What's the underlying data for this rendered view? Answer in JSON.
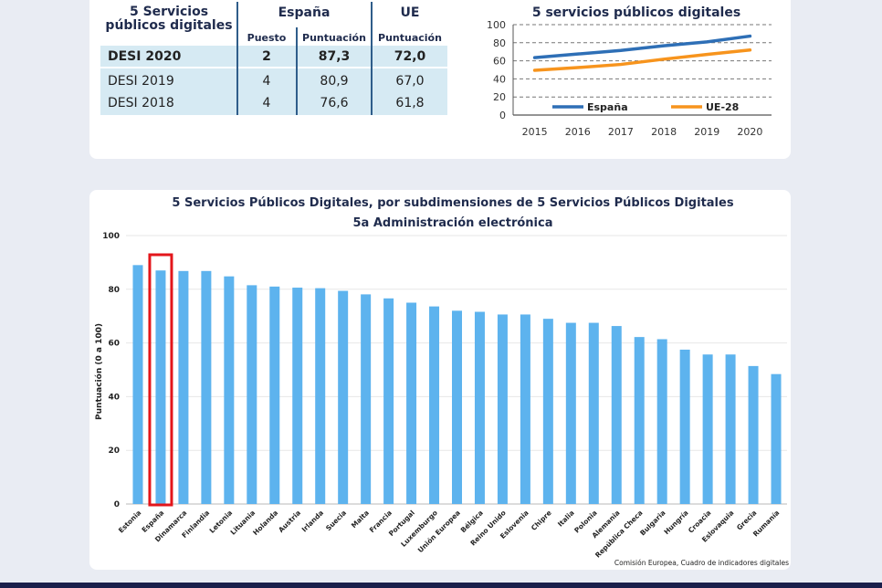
{
  "table": {
    "title_line1": "5 Servicios",
    "title_line2": "públicos digitales",
    "group_spain": "España",
    "group_ue": "UE",
    "col_puesto": "Puesto",
    "col_puntuacion": "Puntuación",
    "col_puntuacion_ue": "Puntuación",
    "rows": [
      {
        "label": "DESI 2020",
        "puesto": "2",
        "esp": "87,3",
        "ue": "72,0"
      },
      {
        "label": "DESI 2019",
        "puesto": "4",
        "esp": "80,9",
        "ue": "67,0"
      },
      {
        "label": "DESI 2018",
        "puesto": "4",
        "esp": "76,6",
        "ue": "61,8"
      }
    ]
  },
  "chart_data": [
    {
      "type": "line",
      "title": "5 servicios públicos digitales",
      "x": [
        2015,
        2016,
        2017,
        2018,
        2019,
        2020
      ],
      "yticks": [
        0,
        20,
        40,
        60,
        80,
        100
      ],
      "ylim": [
        0,
        100
      ],
      "grid": "dashed horizontal",
      "legend": "bottom",
      "series": [
        {
          "name": "España",
          "color": "#2e6fb6",
          "values": [
            63.5,
            67.5,
            71.5,
            76.6,
            80.9,
            87.3
          ]
        },
        {
          "name": "UE-28",
          "color": "#f7941d",
          "values": [
            49.5,
            52.5,
            56.0,
            61.8,
            67.0,
            72.0
          ]
        }
      ]
    },
    {
      "type": "bar",
      "title": "5 Servicios Públicos Digitales, por subdimensiones de 5 Servicios Públicos Digitales",
      "subtitle": "5a Administración electrónica",
      "ylabel": "Puntuación (0 a 100)",
      "ylim": [
        0,
        100
      ],
      "yticks": [
        0,
        20,
        40,
        60,
        80,
        100
      ],
      "bar_color": "#5db3ee",
      "highlight_category": "España",
      "highlight_color": "#e3161b",
      "categories": [
        "Estonia",
        "España",
        "Dinamarca",
        "Finlandia",
        "Letonia",
        "Lituania",
        "Holanda",
        "Austria",
        "Irlanda",
        "Suecia",
        "Malta",
        "Francia",
        "Portugal",
        "Luxemburgo",
        "Unión Europea",
        "Bélgica",
        "Reino Unido",
        "Eslovenia",
        "Chipre",
        "Italia",
        "Polonia",
        "Alemania",
        "República Checa",
        "Bulgaria",
        "Hungría",
        "Croacia",
        "Eslovaquia",
        "Grecia",
        "Rumanía"
      ],
      "values": [
        89,
        87,
        86.8,
        86.8,
        84.8,
        81.5,
        81,
        80.6,
        80.4,
        79.4,
        78.1,
        76.6,
        75,
        73.6,
        72,
        71.6,
        70.6,
        70.6,
        69,
        67.5,
        67.5,
        66.3,
        62.2,
        61.4,
        57.5,
        55.7,
        55.7,
        51.4,
        48.4
      ],
      "source": "Comisión Europea, Cuadro de indicadores digitales"
    }
  ]
}
